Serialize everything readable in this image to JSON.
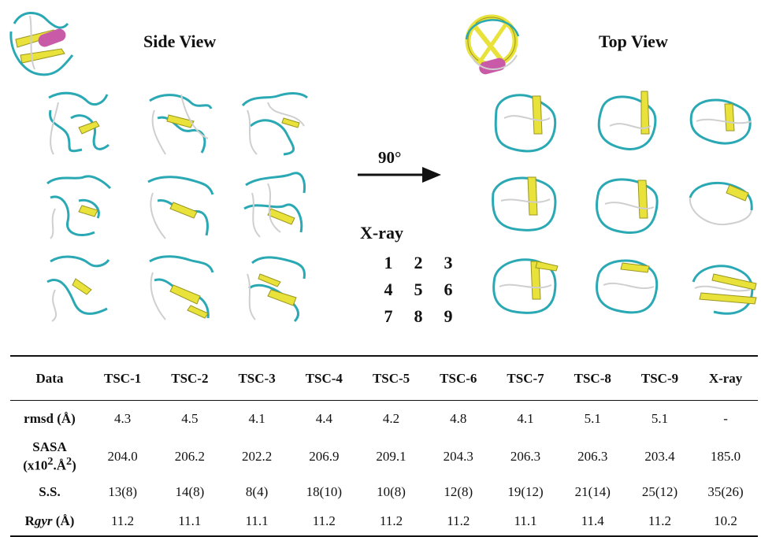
{
  "titles": {
    "side_view": "Side View",
    "top_view": "Top View"
  },
  "rotation_label": "90°",
  "legend": {
    "title": "X-ray",
    "grid": [
      [
        "1",
        "2",
        "3"
      ],
      [
        "4",
        "5",
        "6"
      ],
      [
        "7",
        "8",
        "9"
      ]
    ]
  },
  "colors": {
    "coil": "#2aa9b4",
    "strand": "#e8e23a",
    "strand_dark": "#9a9620",
    "helix": "#c85aa8",
    "loop": "#cfcfcf"
  },
  "table": {
    "headers": [
      "Data",
      "TSC-1",
      "TSC-2",
      "TSC-3",
      "TSC-4",
      "TSC-5",
      "TSC-6",
      "TSC-7",
      "TSC-8",
      "TSC-9",
      "X-ray"
    ],
    "rows": [
      {
        "label": "rmsd (Å)",
        "values": [
          "4.3",
          "4.5",
          "4.1",
          "4.4",
          "4.2",
          "4.8",
          "4.1",
          "5.1",
          "5.1",
          "-"
        ]
      },
      {
        "label_line1": "SASA",
        "label_line2": "(x10",
        "label_sup1": "2",
        "label_mid": ".Å",
        "label_sup2": "2",
        "label_end": ")",
        "values": [
          "204.0",
          "206.2",
          "202.2",
          "206.9",
          "209.1",
          "204.3",
          "206.3",
          "206.3",
          "203.4",
          "185.0"
        ]
      },
      {
        "label": "S.S.",
        "values": [
          "13(8)",
          "14(8)",
          "8(4)",
          "18(10)",
          "10(8)",
          "12(8)",
          "19(12)",
          "21(14)",
          "25(12)",
          "35(26)"
        ]
      },
      {
        "label_pre": "R",
        "label_ital": "gyr",
        "label_post": " (Å)",
        "values": [
          "11.2",
          "11.1",
          "11.1",
          "11.2",
          "11.2",
          "11.2",
          "11.1",
          "11.4",
          "11.2",
          "10.2"
        ]
      }
    ]
  }
}
